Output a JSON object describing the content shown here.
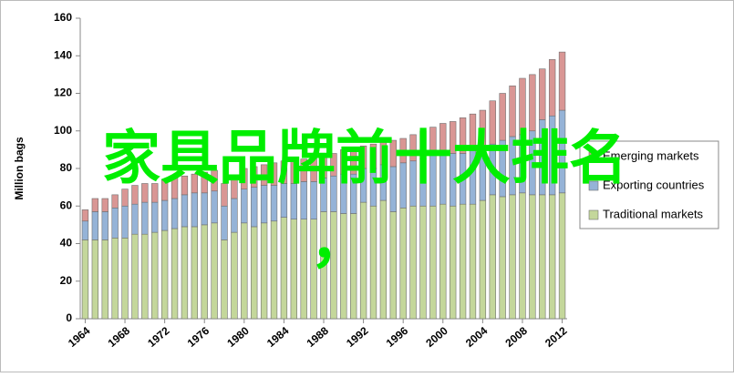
{
  "chart_data": {
    "type": "stacked_bar",
    "y_label": "Million bags",
    "overlay_text": [
      "家具品牌前十大排名",
      "，"
    ],
    "overlay_color": "#00ee00",
    "x": [
      1964,
      1965,
      1966,
      1967,
      1968,
      1969,
      1970,
      1971,
      1972,
      1973,
      1974,
      1975,
      1976,
      1977,
      1978,
      1979,
      1980,
      1981,
      1982,
      1983,
      1984,
      1985,
      1986,
      1987,
      1988,
      1989,
      1990,
      1991,
      1992,
      1993,
      1994,
      1995,
      1996,
      1997,
      1998,
      1999,
      2000,
      2001,
      2002,
      2003,
      2004,
      2005,
      2006,
      2007,
      2008,
      2009,
      2010,
      2011,
      2012
    ],
    "series": [
      {
        "name": "Traditional markets",
        "color": "#c4d79b",
        "values": [
          42,
          42,
          42,
          43,
          43,
          45,
          45,
          46,
          47,
          48,
          49,
          49,
          50,
          51,
          42,
          46,
          51,
          49,
          51,
          52,
          54,
          53,
          53,
          53,
          57,
          57,
          56,
          56,
          62,
          60,
          63,
          57,
          59,
          60,
          60,
          60,
          61,
          60,
          61,
          61,
          63,
          66,
          65,
          66,
          67,
          66,
          66,
          66,
          67
        ]
      },
      {
        "name": "Exporting countries",
        "color": "#95b3d7",
        "values": [
          10,
          15,
          15,
          16,
          17,
          16,
          17,
          16,
          16,
          16,
          17,
          18,
          17,
          17,
          18,
          18,
          18,
          21,
          20,
          19,
          18,
          19,
          20,
          20,
          18,
          19,
          21,
          21,
          18,
          20,
          19,
          24,
          24,
          24,
          25,
          27,
          27,
          28,
          27,
          29,
          29,
          27,
          30,
          31,
          31,
          34,
          40,
          42,
          44
        ]
      },
      {
        "name": "Emerging markets",
        "color": "#d99694",
        "values": [
          6,
          7,
          7,
          7,
          9,
          10,
          10,
          10,
          11,
          11,
          10,
          10,
          11,
          11,
          12,
          12,
          11,
          11,
          11,
          12,
          12,
          12,
          12,
          13,
          12,
          12,
          13,
          14,
          12,
          13,
          12,
          14,
          13,
          14,
          15,
          15,
          16,
          17,
          19,
          19,
          19,
          23,
          25,
          27,
          30,
          30,
          27,
          30,
          31
        ]
      }
    ],
    "xlim": [
      1963.5,
      2012.5
    ],
    "xticks": [
      1964,
      1968,
      1972,
      1976,
      1980,
      1984,
      1988,
      1992,
      1996,
      2000,
      2004,
      2008,
      2012
    ],
    "ylim": [
      0,
      160
    ],
    "yticks": [
      0,
      20,
      40,
      60,
      80,
      100,
      120,
      140,
      160
    ],
    "legend": "right"
  }
}
